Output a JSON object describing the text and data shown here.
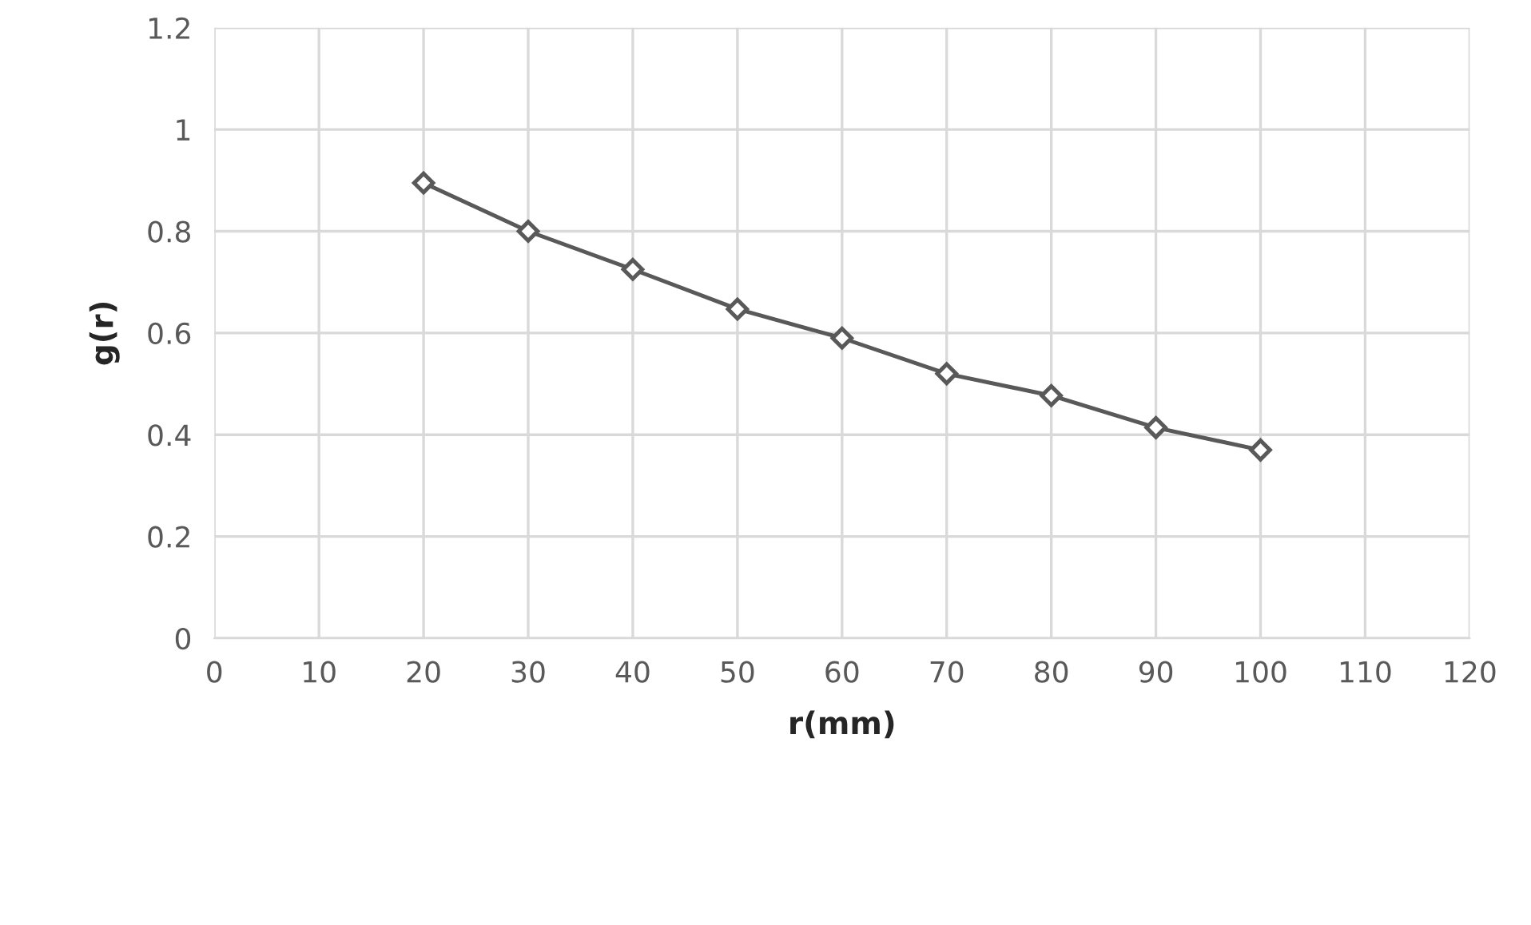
{
  "chart_data": {
    "type": "line",
    "xlabel": "r(mm)",
    "ylabel": "g(r)",
    "x": [
      20,
      30,
      40,
      50,
      60,
      70,
      80,
      90,
      100
    ],
    "series": [
      {
        "color": "#595959",
        "values": [
          0.895,
          0.8,
          0.725,
          0.647,
          0.59,
          0.52,
          0.477,
          0.414,
          0.37
        ]
      }
    ],
    "xlim": [
      0,
      120
    ],
    "xticks": [
      0,
      10,
      20,
      30,
      40,
      50,
      60,
      70,
      80,
      90,
      100,
      110,
      120
    ],
    "ylim": [
      0,
      1.2
    ],
    "yticks": [
      0,
      0.2,
      0.4,
      0.6,
      0.8,
      1,
      1.2
    ],
    "grid": true,
    "marker": "diamond",
    "line_style": "solid"
  }
}
